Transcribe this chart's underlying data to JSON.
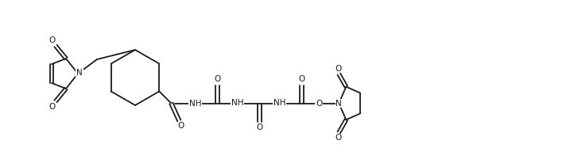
{
  "bg_color": "#ffffff",
  "line_color": "#1a1a1a",
  "line_width": 1.3,
  "font_size": 7.5,
  "figsize": [
    7.22,
    2.06
  ],
  "dpi": 100,
  "xlim": [
    0,
    72.2
  ],
  "ylim": [
    0,
    20.6
  ]
}
